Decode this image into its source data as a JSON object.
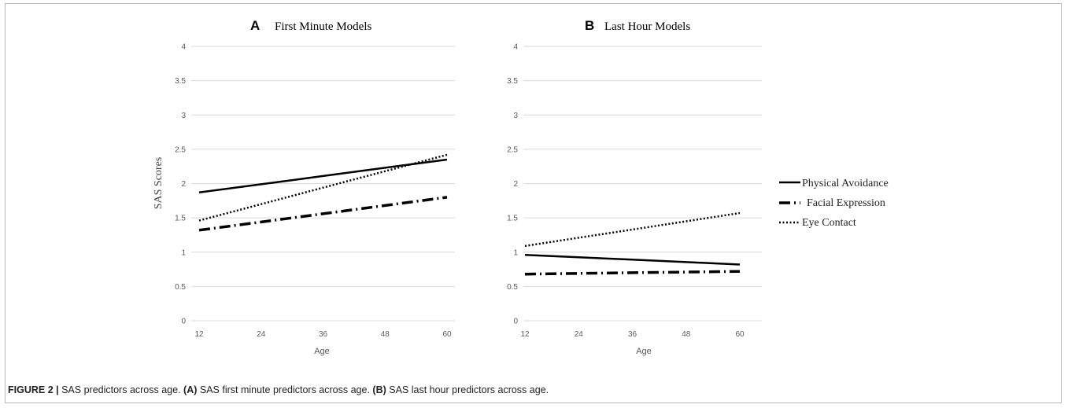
{
  "caption": {
    "label": "FIGURE 2 |",
    "text1": " SAS predictors across age. ",
    "a_tag": "(A)",
    "text2": " SAS first minute predictors across age. ",
    "b_tag": "(B)",
    "text3": " SAS last hour predictors across age."
  },
  "y_axis_label": "SAS Scores",
  "legend": [
    {
      "label": "Physical Avoidance",
      "style": "solid"
    },
    {
      "label": "Facial Expression",
      "style": "dashdot"
    },
    {
      "label": "Eye Contact",
      "style": "dotted"
    }
  ],
  "chart_data": [
    {
      "type": "line",
      "panel": "A",
      "title": "First Minute Models",
      "xlabel": "Age",
      "ylabel": "SAS Scores",
      "x": [
        12,
        24,
        36,
        48,
        60
      ],
      "x_ticks": [
        "12",
        "24",
        "36",
        "48",
        "60"
      ],
      "y_ticks": [
        "0",
        "0.5",
        "1",
        "1.5",
        "2",
        "2.5",
        "3",
        "3.5",
        "4"
      ],
      "ylim": [
        0,
        4
      ],
      "grid": "horizontal",
      "series": [
        {
          "name": "Physical Avoidance",
          "values": [
            1.87,
            1.99,
            2.11,
            2.23,
            2.35
          ],
          "style": "solid"
        },
        {
          "name": "Facial Expression",
          "values": [
            1.32,
            1.44,
            1.56,
            1.68,
            1.8
          ],
          "style": "dashdot"
        },
        {
          "name": "Eye Contact",
          "values": [
            1.46,
            1.7,
            1.94,
            2.18,
            2.42
          ],
          "style": "dotted"
        }
      ]
    },
    {
      "type": "line",
      "panel": "B",
      "title": "Last Hour Models",
      "xlabel": "Age",
      "ylabel": "",
      "x": [
        12,
        24,
        36,
        48,
        60
      ],
      "x_ticks": [
        "12",
        "24",
        "36",
        "48",
        "60"
      ],
      "y_ticks": [
        "0",
        "0.5",
        "1",
        "1.5",
        "2",
        "2.5",
        "3",
        "3.5",
        "4"
      ],
      "ylim": [
        0,
        4
      ],
      "grid": "horizontal",
      "series": [
        {
          "name": "Physical Avoidance",
          "values": [
            0.96,
            0.925,
            0.89,
            0.855,
            0.82
          ],
          "style": "solid"
        },
        {
          "name": "Facial Expression",
          "values": [
            0.68,
            0.69,
            0.7,
            0.71,
            0.72
          ],
          "style": "dashdot"
        },
        {
          "name": "Eye Contact",
          "values": [
            1.09,
            1.21,
            1.33,
            1.45,
            1.57
          ],
          "style": "dotted"
        }
      ]
    }
  ]
}
